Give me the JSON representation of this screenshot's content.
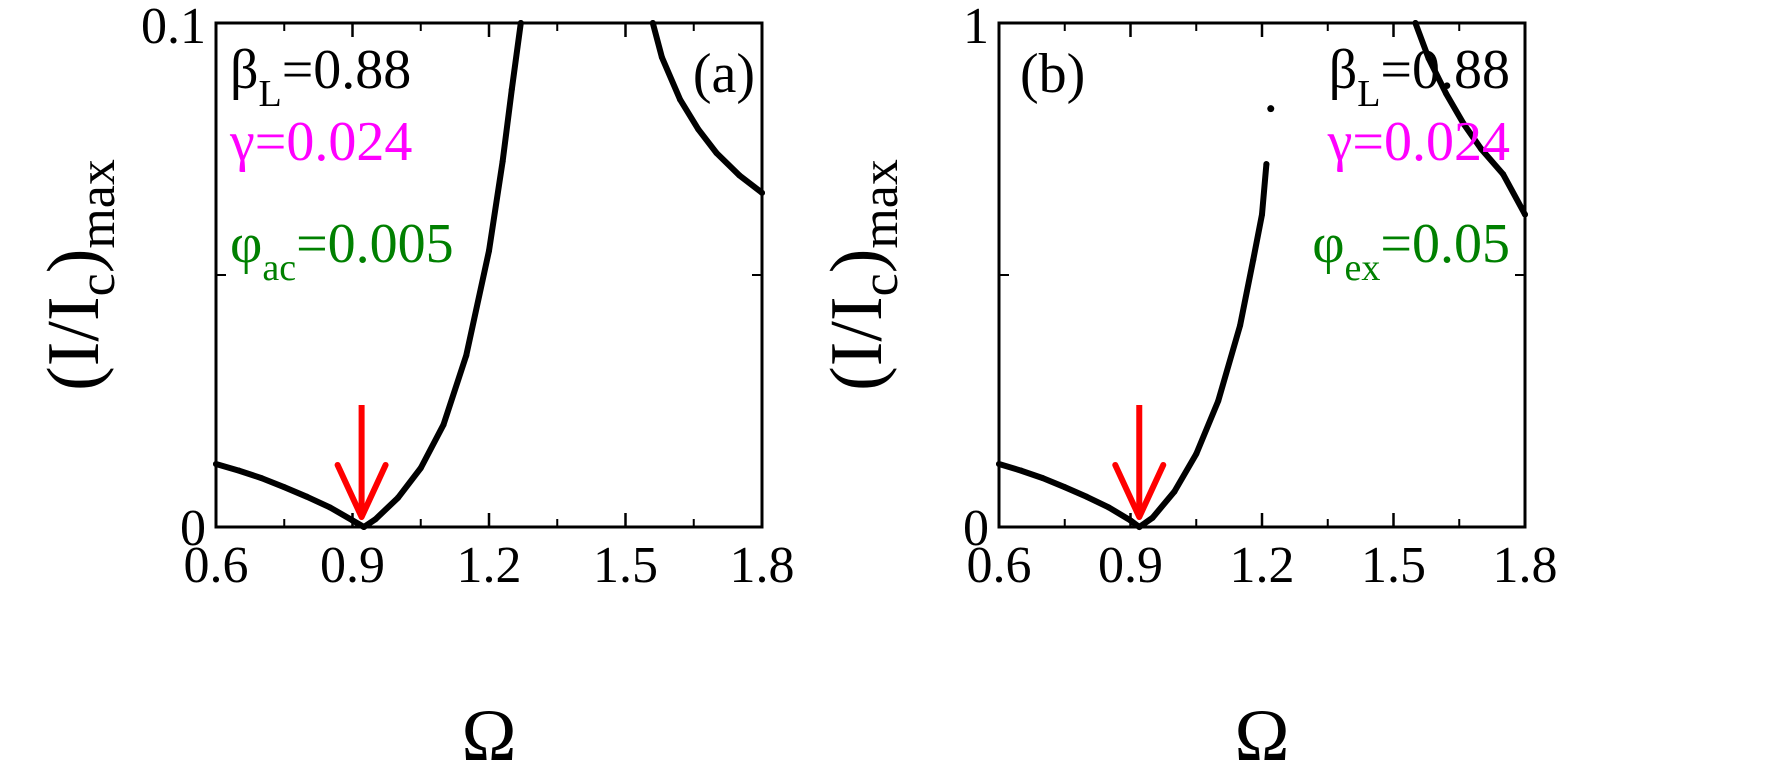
{
  "chart_data": [
    {
      "type": "scatter",
      "panel_label": "(a)",
      "xlabel": "Ω",
      "ylabel": {
        "base": "(I/I",
        "sub1": "c",
        "mid": ")",
        "sub2": "max"
      },
      "xlim": [
        0.6,
        1.8
      ],
      "ylim": [
        0,
        0.1
      ],
      "x_ticks": [
        0.6,
        0.9,
        1.2,
        1.5,
        1.8
      ],
      "x_tick_labels": [
        "0.6",
        "0.9",
        "1.2",
        "1.5",
        "1.8"
      ],
      "y_ticks": [
        0,
        0.1
      ],
      "y_tick_labels": [
        "0",
        "0.1"
      ],
      "annotations": [
        {
          "base": "β",
          "sub": "L",
          "rest": "=0.88",
          "color": "#000000"
        },
        {
          "base": "γ=0.024",
          "sub": "",
          "rest": "",
          "color": "#ff00ff"
        },
        {
          "base": "φ",
          "sub": "ac",
          "rest": "=0.005",
          "color": "#008000"
        }
      ],
      "arrow": {
        "x": 0.92,
        "color": "#ff0000"
      },
      "series": [
        {
          "color": "#000000",
          "points": [
            [
              0.6,
              0.0125
            ],
            [
              0.65,
              0.0112
            ],
            [
              0.7,
              0.0097
            ],
            [
              0.75,
              0.0079
            ],
            [
              0.8,
              0.006
            ],
            [
              0.85,
              0.0039
            ],
            [
              0.9,
              0.0013
            ],
            [
              0.925,
              0.0
            ],
            [
              0.95,
              0.0015
            ],
            [
              1.0,
              0.0058
            ],
            [
              1.05,
              0.0117
            ],
            [
              1.1,
              0.0203
            ],
            [
              1.15,
              0.034
            ],
            [
              1.2,
              0.0548
            ],
            [
              1.23,
              0.0725
            ],
            [
              1.25,
              0.0868
            ],
            [
              1.27,
              0.1
            ]
          ]
        },
        {
          "color": "#000000",
          "points": [
            [
              1.56,
              0.1
            ],
            [
              1.58,
              0.0932
            ],
            [
              1.62,
              0.0848
            ],
            [
              1.66,
              0.0789
            ],
            [
              1.7,
              0.0742
            ],
            [
              1.75,
              0.0698
            ],
            [
              1.8,
              0.0663
            ]
          ]
        }
      ]
    },
    {
      "type": "scatter",
      "panel_label": "(b)",
      "xlabel": "Ω",
      "ylabel": {
        "base": "(I/I",
        "sub1": "c",
        "mid": ")",
        "sub2": "max"
      },
      "xlim": [
        0.6,
        1.8
      ],
      "ylim": [
        0,
        1
      ],
      "x_ticks": [
        0.6,
        0.9,
        1.2,
        1.5,
        1.8
      ],
      "x_tick_labels": [
        "0.6",
        "0.9",
        "1.2",
        "1.5",
        "1.8"
      ],
      "y_ticks": [
        0,
        1
      ],
      "y_tick_labels": [
        "0",
        "1"
      ],
      "annotations": [
        {
          "base": "β",
          "sub": "L",
          "rest": "=0.88",
          "color": "#000000"
        },
        {
          "base": "γ=0.024",
          "sub": "",
          "rest": "",
          "color": "#ff00ff"
        },
        {
          "base": "φ",
          "sub": "ex",
          "rest": "=0.05",
          "color": "#008000"
        }
      ],
      "arrow": {
        "x": 0.92,
        "color": "#ff0000"
      },
      "series": [
        {
          "color": "#000000",
          "points": [
            [
              0.6,
              0.125
            ],
            [
              0.65,
              0.112
            ],
            [
              0.7,
              0.097
            ],
            [
              0.75,
              0.079
            ],
            [
              0.8,
              0.06
            ],
            [
              0.85,
              0.039
            ],
            [
              0.9,
              0.013
            ],
            [
              0.92,
              0.0
            ],
            [
              0.95,
              0.018
            ],
            [
              1.0,
              0.07
            ],
            [
              1.05,
              0.145
            ],
            [
              1.1,
              0.25
            ],
            [
              1.15,
              0.4
            ],
            [
              1.18,
              0.53
            ],
            [
              1.2,
              0.62
            ],
            [
              1.21,
              0.72
            ]
          ]
        },
        {
          "color": "#000000",
          "points": [
            [
              1.55,
              1.0
            ],
            [
              1.58,
              0.93
            ],
            [
              1.62,
              0.86
            ],
            [
              1.66,
              0.8
            ],
            [
              1.7,
              0.75
            ],
            [
              1.75,
              0.7
            ],
            [
              1.8,
              0.62
            ]
          ]
        }
      ],
      "isolated_points": [
        [
          1.22,
          0.83
        ]
      ]
    }
  ]
}
